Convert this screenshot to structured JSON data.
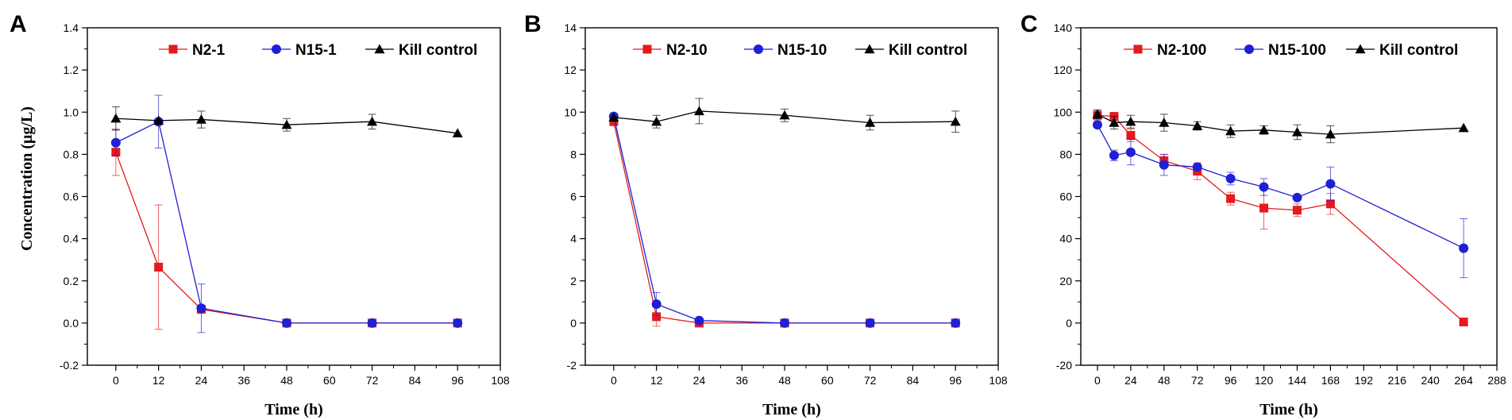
{
  "chart_data": [
    {
      "type": "line",
      "panel": "A",
      "xlabel": "Time (h)",
      "ylabel": "Concentration (μg/L)",
      "xlim": [
        -8,
        108
      ],
      "ylim": [
        -0.2,
        1.4
      ],
      "xticks": [
        0,
        12,
        24,
        36,
        48,
        60,
        72,
        84,
        96,
        108
      ],
      "xtick_labels": [
        "0",
        "12",
        "24",
        "36",
        "48",
        "60",
        "72",
        "84",
        "96",
        "108"
      ],
      "yticks": [
        -0.2,
        0,
        0.2,
        0.4,
        0.6,
        0.8,
        1.0,
        1.2,
        1.4
      ],
      "ytick_labels": [
        "-0.2",
        "0.0",
        "0.2",
        "0.4",
        "0.6",
        "0.8",
        "1.0",
        "1.2",
        "1.4"
      ],
      "legend_position": "top-right",
      "series": [
        {
          "name": "N2-1",
          "color": "#e41a1c",
          "marker": "square",
          "x": [
            0,
            12,
            24,
            48,
            72,
            96
          ],
          "y": [
            0.81,
            0.265,
            0.065,
            0.0,
            0.0,
            0.0
          ],
          "err": [
            0.11,
            0.295,
            0.0,
            0.0,
            0.0,
            0.0
          ]
        },
        {
          "name": "N15-1",
          "color": "#1f1fd6",
          "marker": "circle",
          "x": [
            0,
            12,
            24,
            48,
            72,
            96
          ],
          "y": [
            0.855,
            0.955,
            0.07,
            0.0,
            0.0,
            0.0
          ],
          "err": [
            0.06,
            0.125,
            0.115,
            0.0,
            0.0,
            0.0
          ]
        },
        {
          "name": "Kill control",
          "color": "#000000",
          "marker": "triangle",
          "x": [
            0,
            12,
            24,
            48,
            72,
            96
          ],
          "y": [
            0.97,
            0.96,
            0.965,
            0.94,
            0.955,
            0.9
          ],
          "err": [
            0.055,
            0.0,
            0.04,
            0.03,
            0.035,
            0.0
          ]
        }
      ]
    },
    {
      "type": "line",
      "panel": "B",
      "xlabel": "Time (h)",
      "ylabel": "",
      "xlim": [
        -8,
        108
      ],
      "ylim": [
        -2,
        14
      ],
      "xticks": [
        0,
        12,
        24,
        36,
        48,
        60,
        72,
        84,
        96,
        108
      ],
      "xtick_labels": [
        "0",
        "12",
        "24",
        "36",
        "48",
        "60",
        "72",
        "84",
        "96",
        "108"
      ],
      "yticks": [
        -2,
        0,
        2,
        4,
        6,
        8,
        10,
        12,
        14
      ],
      "ytick_labels": [
        "-2",
        "0",
        "2",
        "4",
        "6",
        "8",
        "10",
        "12",
        "14"
      ],
      "legend_position": "top-right",
      "series": [
        {
          "name": "N2-10",
          "color": "#e41a1c",
          "marker": "square",
          "x": [
            0,
            12,
            24,
            48,
            72,
            96
          ],
          "y": [
            9.55,
            0.3,
            0.0,
            0.0,
            0.0,
            0.0
          ],
          "err": [
            0.0,
            0.45,
            0.0,
            0.0,
            0.0,
            0.0
          ]
        },
        {
          "name": "N15-10",
          "color": "#1f1fd6",
          "marker": "circle",
          "x": [
            0,
            12,
            24,
            48,
            72,
            96
          ],
          "y": [
            9.8,
            0.9,
            0.12,
            0.0,
            0.0,
            0.0
          ],
          "err": [
            0.0,
            0.55,
            0.0,
            0.0,
            0.0,
            0.0
          ]
        },
        {
          "name": "Kill control",
          "color": "#000000",
          "marker": "triangle",
          "x": [
            0,
            12,
            24,
            48,
            72,
            96
          ],
          "y": [
            9.75,
            9.55,
            10.05,
            9.85,
            9.5,
            9.55
          ],
          "err": [
            0.0,
            0.3,
            0.6,
            0.3,
            0.35,
            0.5
          ]
        }
      ]
    },
    {
      "type": "line",
      "panel": "C",
      "xlabel": "Time (h)",
      "ylabel": "",
      "xlim": [
        -12,
        288
      ],
      "ylim": [
        -20,
        140
      ],
      "xticks": [
        0,
        24,
        48,
        72,
        96,
        120,
        144,
        168,
        192,
        216,
        240,
        264,
        288
      ],
      "xtick_labels": [
        "0",
        "24",
        "48",
        "72",
        "96",
        "120",
        "144",
        "168",
        "192",
        "216",
        "240",
        "264",
        "288"
      ],
      "yticks": [
        -20,
        0,
        20,
        40,
        60,
        80,
        100,
        120,
        140
      ],
      "ytick_labels": [
        "-20",
        "0",
        "20",
        "40",
        "60",
        "80",
        "100",
        "120",
        "140"
      ],
      "legend_position": "top-right",
      "series": [
        {
          "name": "N2-100",
          "color": "#e41a1c",
          "marker": "square",
          "x": [
            0,
            12,
            24,
            48,
            72,
            96,
            120,
            144,
            168,
            264
          ],
          "y": [
            98.5,
            98,
            89,
            77,
            72,
            59,
            54.5,
            53.5,
            56.5,
            0.5
          ],
          "err": [
            2.5,
            0,
            3,
            3,
            4,
            3,
            10,
            3,
            5,
            0
          ]
        },
        {
          "name": "N15-100",
          "color": "#1f1fd6",
          "marker": "circle",
          "x": [
            0,
            12,
            24,
            48,
            72,
            96,
            120,
            144,
            168,
            264
          ],
          "y": [
            94,
            79.5,
            81,
            75,
            74,
            68.5,
            64.5,
            59.5,
            66,
            35.5
          ],
          "err": [
            0,
            2.5,
            6,
            5,
            0,
            3,
            4,
            0,
            8,
            14
          ]
        },
        {
          "name": "Kill control",
          "color": "#000000",
          "marker": "triangle",
          "x": [
            0,
            12,
            24,
            48,
            72,
            96,
            120,
            144,
            168,
            264
          ],
          "y": [
            99,
            95,
            95.5,
            95,
            93.5,
            91,
            91.5,
            90.5,
            89.5,
            92.5
          ],
          "err": [
            2,
            3,
            3,
            4,
            2,
            3,
            2,
            3.5,
            4,
            0
          ]
        }
      ]
    }
  ]
}
